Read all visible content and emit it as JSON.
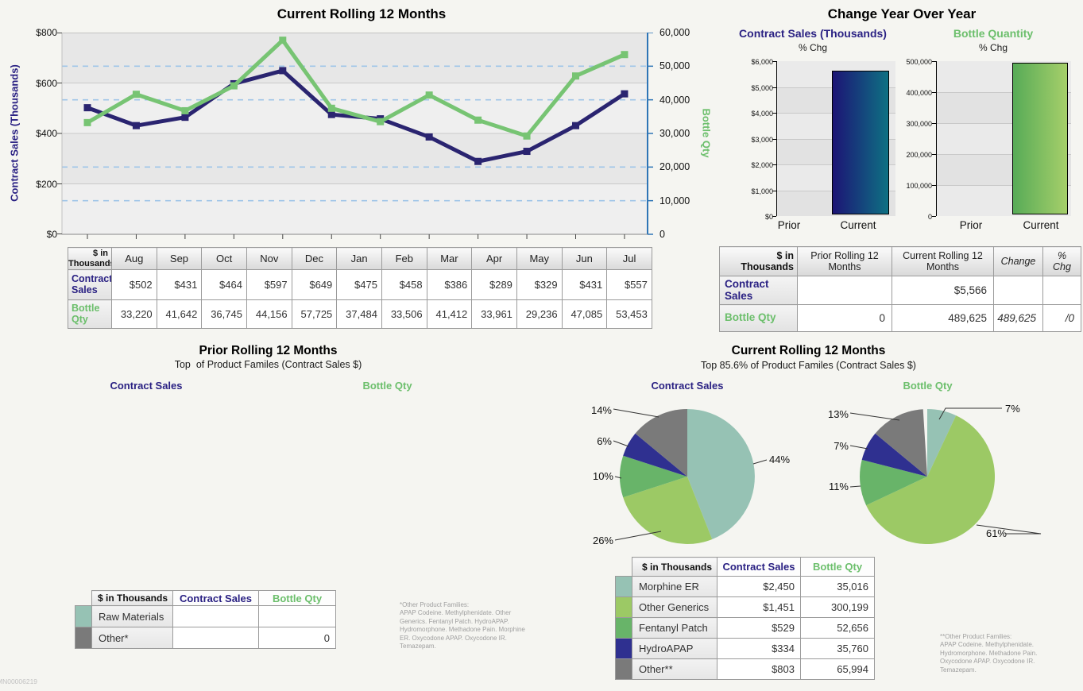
{
  "colors": {
    "navy_text": "#2a2183",
    "green_text": "#6cbf6c",
    "line_navy": "#2a2470",
    "line_green": "#77c473",
    "bar_navy_start": "#1c1475",
    "bar_navy_end": "#0e7183",
    "bar_green_start": "#57ab57",
    "bar_green_end": "#a6cf6a",
    "pie_morphine_er": "#96c2b4",
    "pie_other_generics": "#9cc965",
    "pie_fentanyl_patch": "#68b469",
    "pie_hydroapap": "#2f3090",
    "pie_other": "#7a7a7a",
    "dashed_gridline": "#9fc5e8",
    "right_axis_blue": "#2e75b6"
  },
  "rolling_chart": {
    "title": "Current Rolling 12 Months",
    "left_axis_label": "Contract Sales (Thousands)",
    "right_axis_label": "Bottle Qty",
    "left_ticks": [
      "$800",
      "$600",
      "$400",
      "$200",
      "$0"
    ],
    "right_ticks": [
      "60,000",
      "50,000",
      "40,000",
      "30,000",
      "20,000",
      "10,000",
      "0"
    ],
    "table": {
      "corner_label": "$ in\nThousands",
      "months": [
        "Aug",
        "Sep",
        "Oct",
        "Nov",
        "Dec",
        "Jan",
        "Feb",
        "Mar",
        "Apr",
        "May",
        "Jun",
        "Jul"
      ],
      "rows": [
        {
          "label": "Contract Sales",
          "class": "navy",
          "values": [
            "$502",
            "$431",
            "$464",
            "$597",
            "$649",
            "$475",
            "$458",
            "$386",
            "$289",
            "$329",
            "$431",
            "$557"
          ]
        },
        {
          "label": "Bottle Qty",
          "class": "green",
          "values": [
            "33,220",
            "41,642",
            "36,745",
            "44,156",
            "57,725",
            "37,484",
            "33,506",
            "41,412",
            "33,961",
            "29,236",
            "47,085",
            "53,453"
          ]
        }
      ]
    }
  },
  "yoy": {
    "title": "Change Year Over Year",
    "charts": [
      {
        "title": "Contract Sales (Thousands)",
        "subtitle": "% Chg",
        "yticks": [
          "$6,000",
          "$5,000",
          "$4,000",
          "$3,000",
          "$2,000",
          "$1,000",
          "$0"
        ],
        "categories": [
          "Prior",
          "Current"
        ]
      },
      {
        "title": "Bottle Quantity",
        "subtitle": "% Chg",
        "yticks": [
          "500,000",
          "400,000",
          "300,000",
          "200,000",
          "100,000",
          "0"
        ],
        "categories": [
          "Prior",
          "Current"
        ]
      }
    ],
    "table": {
      "corner_label": "$ in\nThousands",
      "columns": [
        "Prior Rolling 12\nMonths",
        "Current Rolling 12\nMonths",
        "Change",
        "%\nChg"
      ],
      "rows": [
        {
          "label": "Contract Sales",
          "class": "navy",
          "values": [
            "",
            "$5,566",
            "",
            ""
          ]
        },
        {
          "label": "Bottle Qty",
          "class": "green",
          "values": [
            "0",
            "489,625",
            "489,625",
            "/0"
          ]
        }
      ]
    }
  },
  "prior_pies": {
    "title": "Prior Rolling 12 Months",
    "subtitle": "Top  of Product Familes (Contract Sales $)",
    "left_label": "Contract Sales",
    "right_label": "Bottle Qty",
    "table": {
      "corner_label": "$ in Thousands",
      "columns": [
        "Contract Sales",
        "Bottle Qty"
      ],
      "rows": [
        {
          "label": "Raw Materials",
          "swatch": "#96c2b4",
          "values": [
            "",
            ""
          ]
        },
        {
          "label": "Other*",
          "swatch": "#7a7a7a",
          "values": [
            "",
            "0"
          ]
        }
      ]
    },
    "footnote": "*Other Product Families:\nAPAP Codeine. Methylphenidate. Other\nGenerics. Fentanyl Patch. HydroAPAP.\nHydromorphone. Methadone Pain. Morphine\nER. Oxycodone APAP. Oxycodone IR.\nTemazepam."
  },
  "current_pies": {
    "title": "Current Rolling 12 Months",
    "subtitle": "Top 85.6% of Product Familes (Contract Sales $)",
    "left_label": "Contract Sales",
    "right_label": "Bottle Qty",
    "table": {
      "corner_label": "$ in Thousands",
      "columns": [
        "Contract Sales",
        "Bottle Qty"
      ],
      "rows": [
        {
          "label": "Morphine ER",
          "swatch": "#96c2b4",
          "values": [
            "$2,450",
            "35,016"
          ]
        },
        {
          "label": "Other Generics",
          "swatch": "#9cc965",
          "values": [
            "$1,451",
            "300,199"
          ]
        },
        {
          "label": "Fentanyl Patch",
          "swatch": "#68b469",
          "values": [
            "$529",
            "52,656"
          ]
        },
        {
          "label": "HydroAPAP",
          "swatch": "#2f3090",
          "values": [
            "$334",
            "35,760"
          ]
        },
        {
          "label": "Other**",
          "swatch": "#7a7a7a",
          "values": [
            "$803",
            "65,994"
          ]
        }
      ]
    },
    "footnote": "**Other Product Families:\nAPAP Codeine. Methylphenidate.\nHydromorphone. Methadone Pain.\nOxycodone APAP. Oxycodone IR.\nTemazepam."
  },
  "watermark": "MN00006219",
  "chart_data": [
    {
      "type": "line",
      "title": "Current Rolling 12 Months",
      "x": [
        "Aug",
        "Sep",
        "Oct",
        "Nov",
        "Dec",
        "Jan",
        "Feb",
        "Mar",
        "Apr",
        "May",
        "Jun",
        "Jul"
      ],
      "series": [
        {
          "name": "Contract Sales",
          "axis": "left",
          "color": "#2a2470",
          "values": [
            502,
            431,
            464,
            597,
            649,
            475,
            458,
            386,
            289,
            329,
            431,
            557
          ]
        },
        {
          "name": "Bottle Qty",
          "axis": "right",
          "color": "#77c473",
          "values": [
            33220,
            41642,
            36745,
            44156,
            57725,
            37484,
            33506,
            41412,
            33961,
            29236,
            47085,
            53453
          ]
        }
      ],
      "left_axis": {
        "label": "Contract Sales (Thousands)",
        "range": [
          0,
          800
        ]
      },
      "right_axis": {
        "label": "Bottle Qty",
        "range": [
          0,
          60000
        ]
      },
      "grid": "on"
    },
    {
      "type": "bar",
      "title": "Contract Sales (Thousands) % Chg",
      "categories": [
        "Prior",
        "Current"
      ],
      "values": [
        null,
        5566
      ],
      "ylim": [
        0,
        6000
      ]
    },
    {
      "type": "bar",
      "title": "Bottle Quantity % Chg",
      "categories": [
        "Prior",
        "Current"
      ],
      "values": [
        null,
        489625
      ],
      "ylim": [
        0,
        500000
      ]
    },
    {
      "type": "pie",
      "title": "Current Rolling 12 Months - Contract Sales",
      "slices": [
        {
          "label": "Morphine ER",
          "pct": 44,
          "pct_label": "44%",
          "value": 2450,
          "color": "#96c2b4"
        },
        {
          "label": "Other Generics",
          "pct": 26,
          "pct_label": "26%",
          "value": 1451,
          "color": "#9cc965"
        },
        {
          "label": "Fentanyl Patch",
          "pct": 10,
          "pct_label": "10%",
          "value": 529,
          "color": "#68b469"
        },
        {
          "label": "HydroAPAP",
          "pct": 6,
          "pct_label": "6%",
          "value": 334,
          "color": "#2f3090"
        },
        {
          "label": "Other**",
          "pct": 14,
          "pct_label": "14%",
          "value": 803,
          "color": "#7a7a7a"
        }
      ]
    },
    {
      "type": "pie",
      "title": "Current Rolling 12 Months - Bottle Qty",
      "slices": [
        {
          "label": "Morphine ER",
          "pct": 7,
          "pct_label": "7%",
          "value": 35016,
          "color": "#96c2b4"
        },
        {
          "label": "Other Generics",
          "pct": 61,
          "pct_label": "61%",
          "value": 300199,
          "color": "#9cc965"
        },
        {
          "label": "Fentanyl Patch",
          "pct": 11,
          "pct_label": "11%",
          "value": 52656,
          "color": "#68b469"
        },
        {
          "label": "HydroAPAP",
          "pct": 7,
          "pct_label": "7%",
          "value": 35760,
          "color": "#2f3090"
        },
        {
          "label": "Other**",
          "pct": 13,
          "pct_label": "13%",
          "value": 65994,
          "color": "#7a7a7a"
        }
      ]
    }
  ]
}
